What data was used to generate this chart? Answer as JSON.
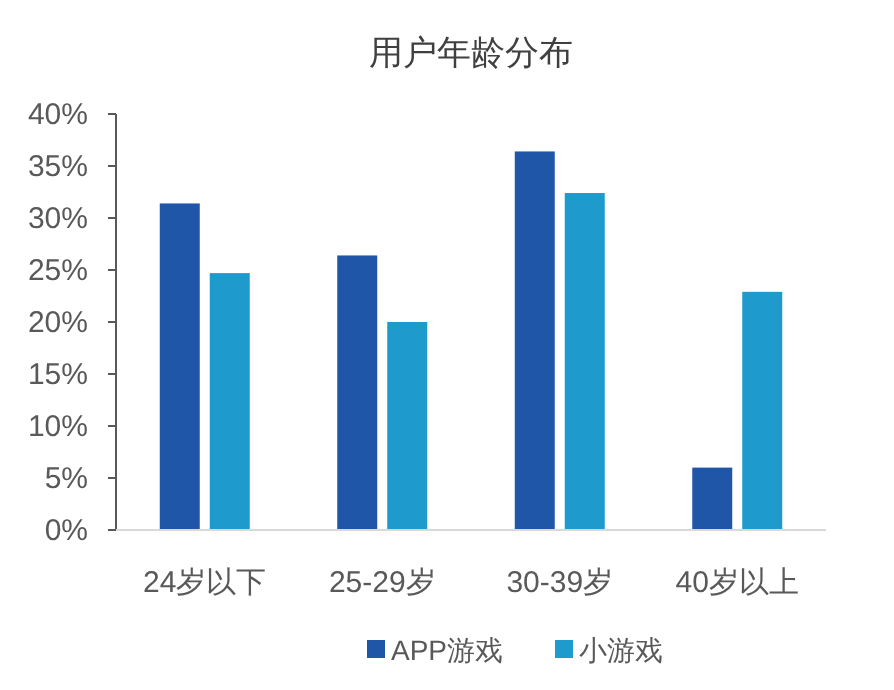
{
  "chart_data": {
    "type": "bar",
    "title": "用户年龄分布",
    "categories": [
      "24岁以下",
      "25-29岁",
      "30-39岁",
      "40岁以上"
    ],
    "series": [
      {
        "name": "APP游戏",
        "color": "#2056a8",
        "values": [
          31.4,
          26.4,
          36.4,
          6.0
        ]
      },
      {
        "name": "小游戏",
        "color": "#1e9acd",
        "values": [
          24.7,
          20.0,
          32.4,
          22.9
        ]
      }
    ],
    "ylim": [
      0,
      40
    ],
    "yticks": [
      {
        "value": 0,
        "label": "0%"
      },
      {
        "value": 5,
        "label": "5%"
      },
      {
        "value": 10,
        "label": "10%"
      },
      {
        "value": 15,
        "label": "15%"
      },
      {
        "value": 20,
        "label": "20%"
      },
      {
        "value": 25,
        "label": "25%"
      },
      {
        "value": 30,
        "label": "30%"
      },
      {
        "value": 35,
        "label": "35%"
      },
      {
        "value": 40,
        "label": "40%"
      }
    ],
    "grid": false,
    "legend": "bottom"
  }
}
